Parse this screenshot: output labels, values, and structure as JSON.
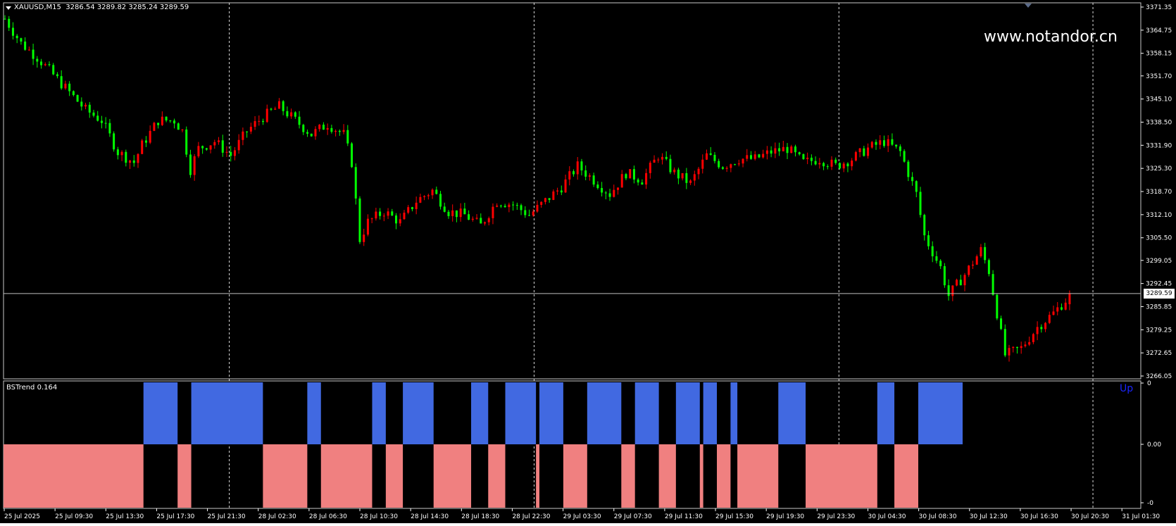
{
  "chart_header": {
    "symbol": "XAUUSD,M15",
    "ohlc": "3286.54 3289.82 3285.24 3289.59"
  },
  "watermark": "www.notandor.cn",
  "indicator": {
    "name": "BSTrend 0.164",
    "state": "Up",
    "scale_labels": [
      "0",
      "0.00",
      "-0"
    ]
  },
  "current_price": "3289.59",
  "colors": {
    "background": "#000000",
    "bull_candle": "#ff0000",
    "bear_candle": "#00ff00",
    "up_bar": "#4169e1",
    "down_bar": "#f08080",
    "axis_text": "#ffffff"
  },
  "chart_data": {
    "type": "candlestick",
    "symbol": "XAUUSD",
    "timeframe": "M15",
    "ylim": [
      3266.05,
      3371.35
    ],
    "y_ticks": [
      "3371.35",
      "3364.75",
      "3358.15",
      "3351.70",
      "3345.10",
      "3338.50",
      "3331.90",
      "3325.30",
      "3318.70",
      "3312.10",
      "3305.50",
      "3299.05",
      "3292.45",
      "3285.85",
      "3279.25",
      "3272.65",
      "3266.05"
    ],
    "x_ticks": [
      "25 Jul 2025",
      "25 Jul 09:30",
      "25 Jul 13:30",
      "25 Jul 17:30",
      "25 Jul 21:30",
      "28 Jul 02:30",
      "28 Jul 06:30",
      "28 Jul 10:30",
      "28 Jul 14:30",
      "28 Jul 18:30",
      "28 Jul 22:30",
      "29 Jul 03:30",
      "29 Jul 07:30",
      "29 Jul 11:30",
      "29 Jul 15:30",
      "29 Jul 19:30",
      "29 Jul 23:30",
      "30 Jul 04:30",
      "30 Jul 08:30",
      "30 Jul 12:30",
      "30 Jul 16:30",
      "30 Jul 20:30",
      "31 Jul 01:30"
    ],
    "period_separators_after_tick": [
      "25 Jul 21:30",
      "28 Jul 22:30",
      "29 Jul 23:30",
      "30 Jul 20:30"
    ],
    "close_path": [
      [
        0,
        3368
      ],
      [
        4,
        3361
      ],
      [
        8,
        3357
      ],
      [
        12,
        3352
      ],
      [
        16,
        3347
      ],
      [
        20,
        3342
      ],
      [
        24,
        3339
      ],
      [
        28,
        3330
      ],
      [
        32,
        3327
      ],
      [
        34,
        3332
      ],
      [
        38,
        3339
      ],
      [
        42,
        3339
      ],
      [
        44,
        3336
      ],
      [
        46,
        3325
      ],
      [
        48,
        3331
      ],
      [
        52,
        3333
      ],
      [
        56,
        3329
      ],
      [
        60,
        3336
      ],
      [
        64,
        3340
      ],
      [
        68,
        3343
      ],
      [
        72,
        3339
      ],
      [
        76,
        3335
      ],
      [
        80,
        3338
      ],
      [
        84,
        3335
      ],
      [
        86,
        3327
      ],
      [
        88,
        3305
      ],
      [
        90,
        3310
      ],
      [
        94,
        3313
      ],
      [
        98,
        3310
      ],
      [
        102,
        3316
      ],
      [
        106,
        3319
      ],
      [
        110,
        3313
      ],
      [
        114,
        3312
      ],
      [
        118,
        3309
      ],
      [
        122,
        3316
      ],
      [
        126,
        3315
      ],
      [
        130,
        3312
      ],
      [
        134,
        3316
      ],
      [
        138,
        3320
      ],
      [
        142,
        3326
      ],
      [
        146,
        3322
      ],
      [
        150,
        3318
      ],
      [
        154,
        3324
      ],
      [
        158,
        3322
      ],
      [
        162,
        3329
      ],
      [
        166,
        3324
      ],
      [
        170,
        3321
      ],
      [
        174,
        3329
      ],
      [
        178,
        3326
      ],
      [
        182,
        3328
      ],
      [
        186,
        3328
      ],
      [
        190,
        3330
      ],
      [
        194,
        3331
      ],
      [
        198,
        3327
      ],
      [
        202,
        3328
      ],
      [
        206,
        3326
      ],
      [
        210,
        3328
      ],
      [
        214,
        3331
      ],
      [
        218,
        3333
      ],
      [
        222,
        3330
      ],
      [
        226,
        3318
      ],
      [
        228,
        3306
      ],
      [
        232,
        3297
      ],
      [
        234,
        3289
      ],
      [
        238,
        3295
      ],
      [
        242,
        3302
      ],
      [
        244,
        3296
      ],
      [
        246,
        3284
      ],
      [
        248,
        3272
      ],
      [
        252,
        3274
      ],
      [
        256,
        3280
      ],
      [
        260,
        3284
      ],
      [
        264,
        3289
      ]
    ],
    "last_candle": {
      "open": 3286.54,
      "high": 3289.82,
      "low": 3285.24,
      "close": 3289.59
    }
  },
  "indicator_data": {
    "type": "histogram",
    "ylim": [
      -1,
      1
    ],
    "segments": [
      [
        0,
        41,
        "down"
      ],
      [
        41,
        51,
        "up"
      ],
      [
        51,
        55,
        "down"
      ],
      [
        55,
        76,
        "up"
      ],
      [
        76,
        89,
        "down"
      ],
      [
        89,
        93,
        "up"
      ],
      [
        93,
        108,
        "down"
      ],
      [
        108,
        112,
        "up"
      ],
      [
        112,
        117,
        "down"
      ],
      [
        117,
        126,
        "up"
      ],
      [
        126,
        137,
        "down"
      ],
      [
        137,
        142,
        "up"
      ],
      [
        142,
        147,
        "down"
      ],
      [
        147,
        156,
        "up"
      ],
      [
        156,
        157,
        "down"
      ],
      [
        157,
        164,
        "up"
      ],
      [
        164,
        171,
        "down"
      ],
      [
        171,
        181,
        "up"
      ],
      [
        181,
        185,
        "down"
      ],
      [
        185,
        192,
        "up"
      ],
      [
        192,
        197,
        "down"
      ],
      [
        197,
        204,
        "up"
      ],
      [
        204,
        205,
        "down"
      ],
      [
        205,
        209,
        "up"
      ],
      [
        209,
        213,
        "down"
      ],
      [
        213,
        215,
        "up"
      ],
      [
        215,
        227,
        "down"
      ],
      [
        227,
        235,
        "up"
      ],
      [
        235,
        256,
        "down"
      ],
      [
        256,
        261,
        "up"
      ],
      [
        261,
        268,
        "down"
      ],
      [
        268,
        281,
        "up"
      ]
    ]
  }
}
